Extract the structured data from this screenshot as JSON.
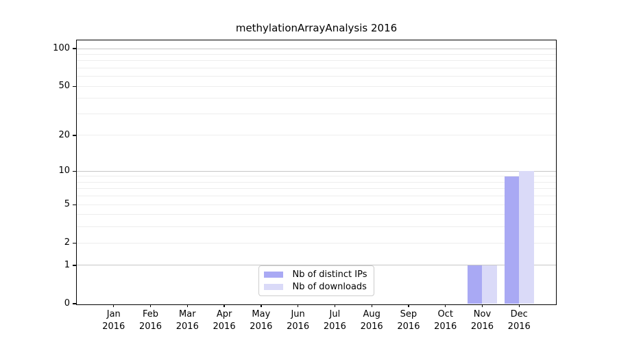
{
  "chart_data": {
    "type": "bar",
    "title": "methylationArrayAnalysis 2016",
    "x": [
      "Jan 2016",
      "Feb 2016",
      "Mar 2016",
      "Apr 2016",
      "May 2016",
      "Jun 2016",
      "Jul 2016",
      "Aug 2016",
      "Sep 2016",
      "Oct 2016",
      "Nov 2016",
      "Dec 2016"
    ],
    "x_tick_months": [
      "Jan",
      "Feb",
      "Mar",
      "Apr",
      "May",
      "Jun",
      "Jul",
      "Aug",
      "Sep",
      "Oct",
      "Nov",
      "Dec"
    ],
    "x_tick_year": "2016",
    "series": [
      {
        "name": "Nb of distinct IPs",
        "color": "#a9a9f4",
        "values": [
          0,
          0,
          0,
          0,
          0,
          0,
          0,
          0,
          0,
          0,
          1,
          9
        ]
      },
      {
        "name": "Nb of downloads",
        "color": "#dadaf8",
        "values": [
          0,
          0,
          0,
          0,
          0,
          0,
          0,
          0,
          0,
          0,
          1,
          10
        ]
      }
    ],
    "yscale": "log10(1+x)",
    "ylim": [
      0,
      117
    ],
    "y_tick_values": [
      0,
      1,
      2,
      5,
      10,
      20,
      50,
      100
    ],
    "y_grid_major": [
      1,
      10,
      100
    ],
    "y_grid_minor": [
      2,
      3,
      4,
      5,
      6,
      7,
      8,
      9,
      20,
      30,
      40,
      50,
      60,
      70,
      80,
      90
    ],
    "grid": true,
    "legend_position": "lower center",
    "colors": {
      "axis": "#000000",
      "text": "#000000",
      "grid_major": "#c6c6c6",
      "grid_minor": "#ededed",
      "background": "#ffffff"
    }
  }
}
